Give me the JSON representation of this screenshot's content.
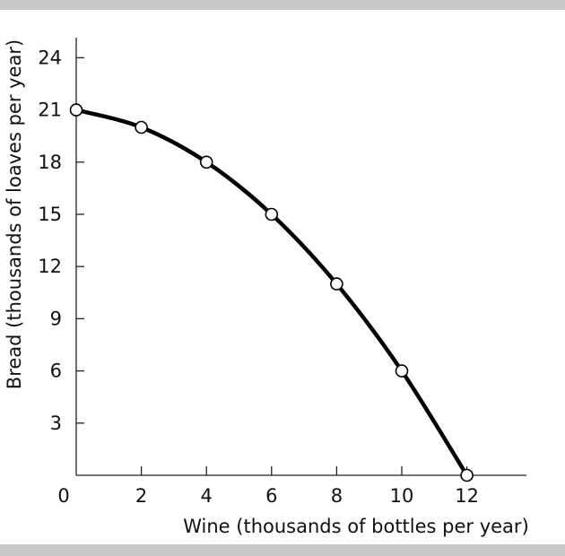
{
  "chart_data": {
    "type": "line",
    "title": "",
    "xlabel": "Wine (thousands of bottles per year)",
    "ylabel": "Bread (thousands of loaves per year)",
    "xlim": [
      0,
      14
    ],
    "ylim": [
      0,
      25
    ],
    "x_ticks": [
      0,
      2,
      4,
      6,
      8,
      10,
      12
    ],
    "x_tick_labels": [
      "0",
      "2",
      "4",
      "6",
      "8",
      "10",
      "12"
    ],
    "y_ticks": [
      3,
      6,
      9,
      12,
      15,
      18,
      21,
      24
    ],
    "y_tick_labels": [
      "3",
      "6",
      "9",
      "12",
      "15",
      "18",
      "21",
      "24"
    ],
    "grid": false,
    "series": [
      {
        "x": [
          0,
          2,
          4,
          6,
          8,
          10,
          12
        ],
        "y": [
          21,
          20,
          18,
          15,
          11,
          6,
          0
        ],
        "markers": "open-circle",
        "color": "#000000"
      }
    ]
  },
  "bands": {
    "color": "#c8c8c8"
  }
}
